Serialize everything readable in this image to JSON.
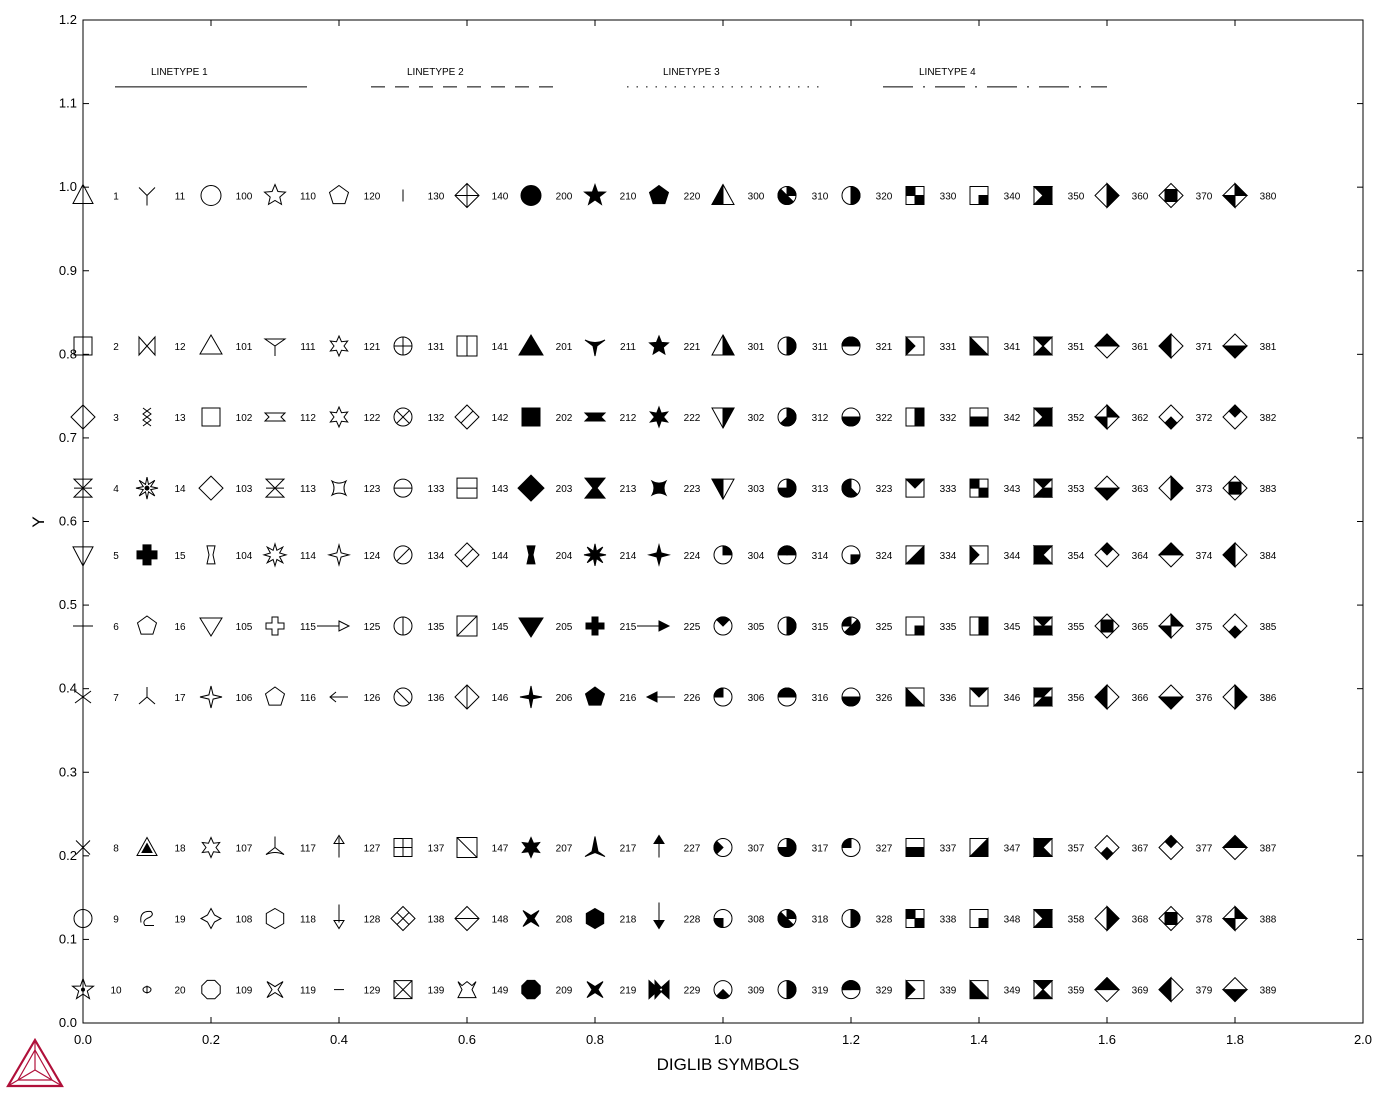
{
  "chart_data": {
    "type": "scatter",
    "title": "",
    "xlabel": "DIGLIB SYMBOLS",
    "ylabel": "Y",
    "xlim": [
      0.0,
      2.0
    ],
    "ylim": [
      0.0,
      1.2
    ],
    "x_ticks": [
      "0.0",
      "0.2",
      "0.4",
      "0.6",
      "0.8",
      "1.0",
      "1.2",
      "1.4",
      "1.6",
      "1.8",
      "2.0"
    ],
    "y_ticks": [
      "0.0",
      "0.1",
      "0.2",
      "0.3",
      "0.4",
      "0.5",
      "0.6",
      "0.7",
      "0.8",
      "0.9",
      "1.0",
      "1.1",
      "1.2"
    ],
    "grid": false,
    "linetypes": [
      {
        "label": "LINETYPE 1",
        "style": "solid",
        "x_start": 0.05,
        "x_end": 0.35,
        "y": 1.12
      },
      {
        "label": "LINETYPE 2",
        "style": "dashed",
        "x_start": 0.45,
        "x_end": 0.75,
        "y": 1.12
      },
      {
        "label": "LINETYPE 3",
        "style": "dotted",
        "x_start": 0.85,
        "x_end": 1.15,
        "y": 1.12
      },
      {
        "label": "LINETYPE 4",
        "style": "dashdot",
        "x_start": 1.25,
        "x_end": 1.6,
        "y": 1.12
      }
    ],
    "symbol_columns": [
      {
        "x": 0.05,
        "labels": [
          "1",
          "2",
          "3",
          "4",
          "5",
          "6",
          "7",
          "8",
          "9",
          "10"
        ]
      },
      {
        "x": 0.15,
        "labels": [
          "11",
          "12",
          "13",
          "14",
          "15",
          "16",
          "17",
          "18",
          "19",
          "20"
        ]
      },
      {
        "x": 0.25,
        "labels": [
          "100",
          "101",
          "102",
          "103",
          "104",
          "105",
          "106",
          "107",
          "108",
          "109"
        ]
      },
      {
        "x": 0.35,
        "labels": [
          "110",
          "111",
          "112",
          "113",
          "114",
          "115",
          "116",
          "117",
          "118",
          "119"
        ]
      },
      {
        "x": 0.45,
        "labels": [
          "120",
          "121",
          "122",
          "123",
          "124",
          "125",
          "126",
          "127",
          "128",
          "129"
        ]
      },
      {
        "x": 0.55,
        "labels": [
          "130",
          "131",
          "132",
          "133",
          "134",
          "135",
          "136",
          "137",
          "138",
          "139"
        ]
      },
      {
        "x": 0.65,
        "labels": [
          "140",
          "141",
          "142",
          "143",
          "144",
          "145",
          "146",
          "147",
          "148",
          "149"
        ]
      },
      {
        "x": 0.75,
        "labels": [
          "200",
          "201",
          "202",
          "203",
          "204",
          "205",
          "206",
          "207",
          "208",
          "209"
        ]
      },
      {
        "x": 0.85,
        "labels": [
          "210",
          "211",
          "212",
          "213",
          "214",
          "215",
          "216",
          "217",
          "218",
          "219"
        ]
      },
      {
        "x": 0.95,
        "labels": [
          "220",
          "221",
          "222",
          "223",
          "224",
          "225",
          "226",
          "227",
          "228",
          "229"
        ]
      },
      {
        "x": 1.05,
        "labels": [
          "300",
          "301",
          "302",
          "303",
          "304",
          "305",
          "306",
          "307",
          "308",
          "309"
        ]
      },
      {
        "x": 1.15,
        "labels": [
          "310",
          "311",
          "312",
          "313",
          "314",
          "315",
          "316",
          "317",
          "318",
          "319"
        ]
      },
      {
        "x": 1.25,
        "labels": [
          "320",
          "321",
          "322",
          "323",
          "324",
          "325",
          "326",
          "327",
          "328",
          "329"
        ]
      },
      {
        "x": 1.35,
        "labels": [
          "330",
          "331",
          "332",
          "333",
          "334",
          "335",
          "336",
          "337",
          "338",
          "339"
        ]
      },
      {
        "x": 1.45,
        "labels": [
          "340",
          "341",
          "342",
          "343",
          "344",
          "345",
          "346",
          "347",
          "348",
          "349"
        ]
      },
      {
        "x": 1.55,
        "labels": [
          "350",
          "351",
          "352",
          "353",
          "354",
          "355",
          "356",
          "357",
          "358",
          "359"
        ]
      },
      {
        "x": 1.65,
        "labels": [
          "360",
          "361",
          "362",
          "363",
          "364",
          "365",
          "366",
          "367",
          "368",
          "369"
        ]
      },
      {
        "x": 1.75,
        "labels": [
          "370",
          "371",
          "372",
          "373",
          "374",
          "375",
          "376",
          "377",
          "378",
          "379"
        ]
      },
      {
        "x": 1.85,
        "labels": [
          "380",
          "381",
          "382",
          "383",
          "384",
          "385",
          "386",
          "387",
          "388",
          "389"
        ]
      }
    ],
    "row_y": [
      0.99,
      0.81,
      0.725,
      0.64,
      0.56,
      0.475,
      0.39,
      0.21,
      0.125,
      0.04
    ],
    "first_column_row_y": [
      0.99,
      0.81,
      0.725,
      0.64,
      0.56,
      0.475,
      0.39,
      0.21,
      0.125,
      0.04
    ],
    "logo": {
      "icon": "tetrahedron-logo-icon",
      "color": "#b0103a"
    }
  }
}
